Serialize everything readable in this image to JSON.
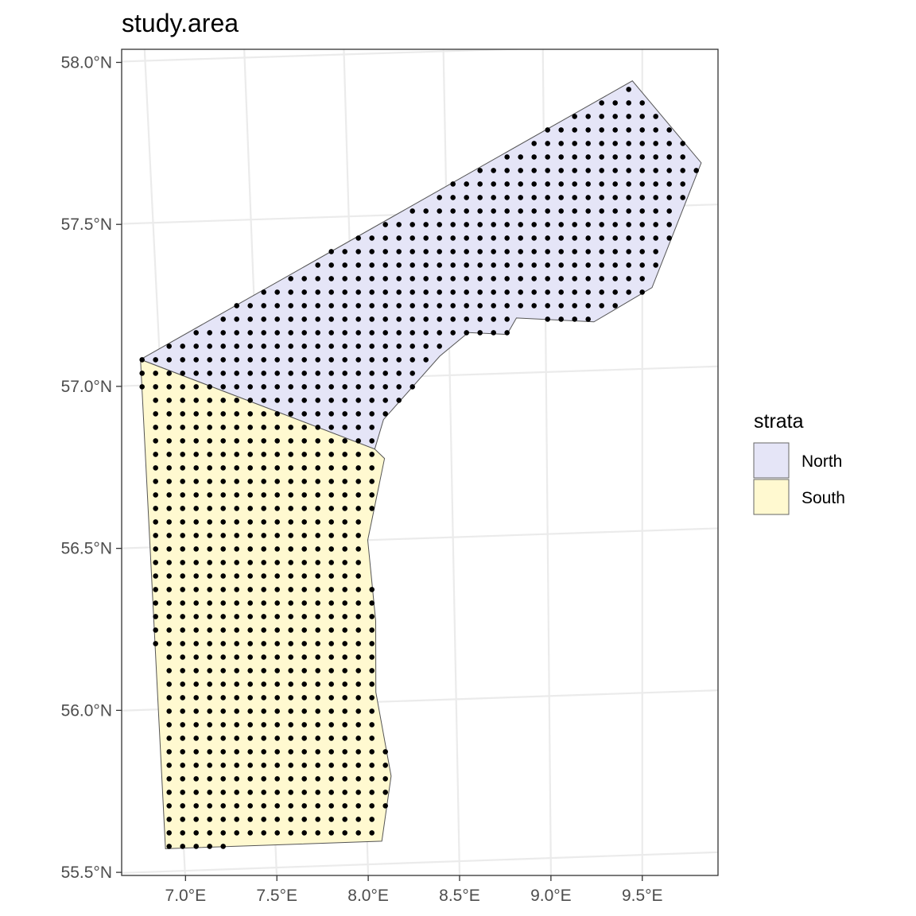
{
  "chart_data": {
    "type": "map",
    "title": "study.area",
    "grid": true,
    "legend": {
      "title": "strata",
      "position": "right",
      "entries": [
        {
          "label": "North",
          "color": "#e5e5f7"
        },
        {
          "label": "South",
          "color": "#fff9d0"
        }
      ]
    },
    "x_ticks": [
      "7.0°E",
      "7.5°E",
      "8.0°E",
      "8.5°E",
      "9.0°E",
      "9.5°E"
    ],
    "y_ticks": [
      "58.0°N",
      "57.5°N",
      "57.0°N",
      "56.5°N",
      "56.0°N",
      "55.5°N"
    ],
    "x_tick_values": [
      7.0,
      7.5,
      8.0,
      8.5,
      9.0,
      9.5
    ],
    "y_tick_values": [
      58.0,
      57.5,
      57.0,
      56.5,
      56.0,
      55.5
    ],
    "xlim": [
      6.75,
      9.9
    ],
    "ylim": [
      55.46,
      58.01
    ],
    "regions": [
      {
        "name": "North",
        "color": "#e5e5f7",
        "outline_lon_lat": [
          [
            6.9,
            57.08
          ],
          [
            9.45,
            57.89
          ],
          [
            9.8,
            57.63
          ],
          [
            9.55,
            57.25
          ],
          [
            9.25,
            57.15
          ],
          [
            8.85,
            57.17
          ],
          [
            8.8,
            57.12
          ],
          [
            8.6,
            57.13
          ],
          [
            8.45,
            57.06
          ],
          [
            8.15,
            56.87
          ],
          [
            8.1,
            56.78
          ]
        ],
        "sample_grid": {
          "lon_range": [
            6.9,
            9.8
          ],
          "lat_range": [
            56.78,
            57.9
          ],
          "lon_step": 0.0745,
          "lat_step": 0.041
        }
      },
      {
        "name": "South",
        "color": "#fff9d0",
        "outline_lon_lat": [
          [
            6.9,
            57.08
          ],
          [
            8.1,
            56.78
          ],
          [
            8.15,
            56.75
          ],
          [
            8.05,
            56.5
          ],
          [
            8.08,
            56.25
          ],
          [
            8.07,
            56.03
          ],
          [
            8.14,
            55.77
          ],
          [
            8.08,
            55.57
          ],
          [
            6.9,
            55.57
          ]
        ],
        "sample_grid": {
          "lon_range": [
            6.9,
            8.15
          ],
          "lat_range": [
            55.57,
            57.08
          ],
          "lon_step": 0.0745,
          "lat_step": 0.041
        }
      }
    ]
  }
}
